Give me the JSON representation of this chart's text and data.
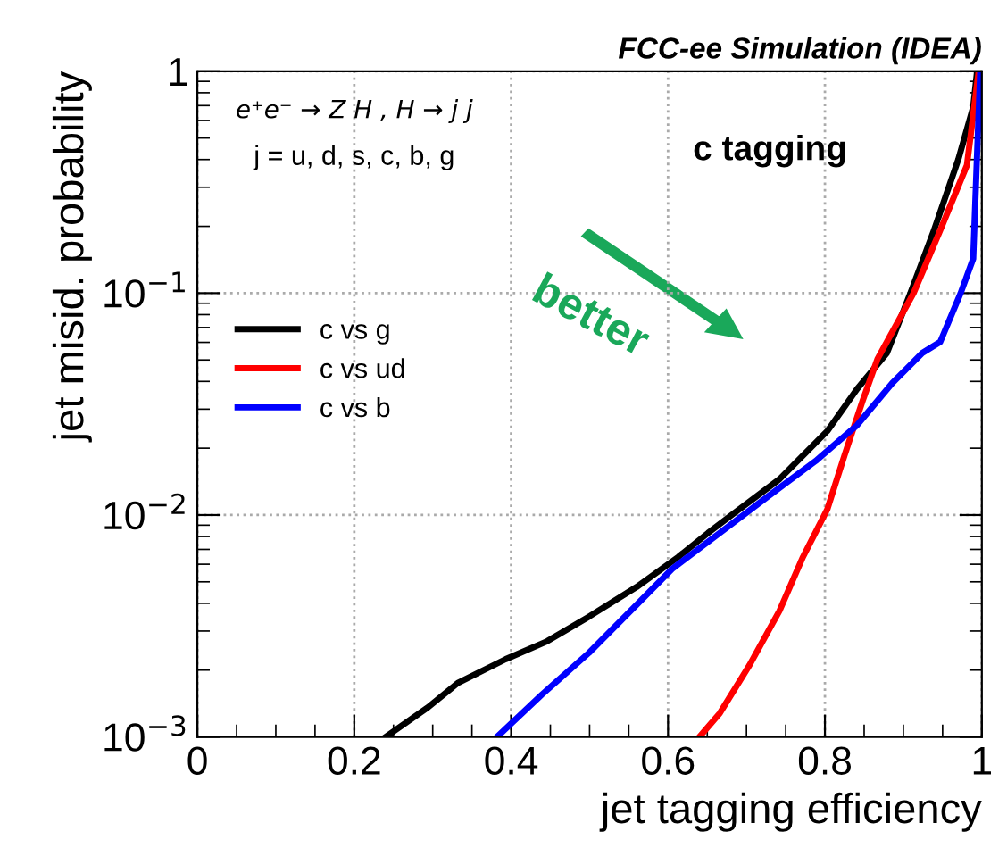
{
  "chart_data": {
    "type": "line",
    "xlabel": "jet tagging efficiency",
    "ylabel": "jet misid. probability",
    "log": "y",
    "xlim": [
      0,
      1
    ],
    "ylim": [
      0.001,
      1
    ],
    "xticks": [
      0,
      0.2,
      0.4,
      0.6,
      0.8,
      1
    ],
    "yticks": [
      {
        "value": 0.001,
        "label": "10$^{−3}$"
      },
      {
        "value": 0.01,
        "label": "10$^{−2}$"
      },
      {
        "value": 0.1,
        "label": "10$^{−1}$"
      },
      1
    ],
    "grid": true,
    "legend": "left",
    "marker": "none",
    "line_style": "solid",
    "annotations": [
      "FCC-ee Simulation (IDEA)",
      "e⁺e⁻ → Z H , H → j j",
      "j = u, d, s, c, b, g",
      "c tagging",
      "better"
    ],
    "series": [
      {
        "name": "c vs g",
        "color": "#000000",
        "x": [
          0.24,
          0.294,
          0.332,
          0.393,
          0.446,
          0.499,
          0.56,
          0.613,
          0.651,
          0.681,
          0.742,
          0.803,
          0.841,
          0.879,
          0.909,
          0.939,
          0.97,
          0.989,
          0.994
        ],
        "values": [
          0.001,
          0.00136,
          0.00175,
          0.00224,
          0.0027,
          0.00348,
          0.00474,
          0.00647,
          0.0083,
          0.01,
          0.0145,
          0.0239,
          0.037,
          0.0537,
          0.1,
          0.192,
          0.4,
          0.69,
          1
        ]
      },
      {
        "name": "c vs ud",
        "color": "#ff0000",
        "x": [
          0.64,
          0.666,
          0.704,
          0.742,
          0.772,
          0.803,
          0.825,
          0.848,
          0.867,
          0.913,
          0.947,
          0.981,
          0.996
        ],
        "values": [
          0.001,
          0.00128,
          0.00211,
          0.0037,
          0.00647,
          0.0106,
          0.0186,
          0.0327,
          0.0505,
          0.1,
          0.192,
          0.377,
          1
        ]
      },
      {
        "name": "c vs b",
        "color": "#0000ff",
        "x": [
          0.382,
          0.439,
          0.499,
          0.56,
          0.605,
          0.666,
          0.727,
          0.788,
          0.841,
          0.886,
          0.924,
          0.947,
          0.973,
          0.989,
          0.994,
          0.998
        ],
        "values": [
          0.001,
          0.00155,
          0.00239,
          0.00394,
          0.00571,
          0.0083,
          0.0121,
          0.0175,
          0.0254,
          0.0394,
          0.0537,
          0.0603,
          0.1,
          0.143,
          0.427,
          1
        ]
      }
    ]
  }
}
